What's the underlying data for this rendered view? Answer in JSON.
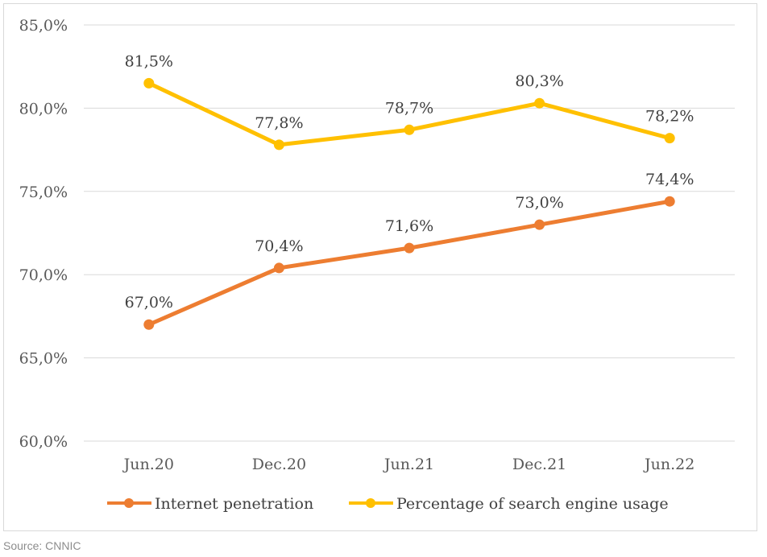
{
  "chart_data": {
    "type": "line",
    "categories": [
      "Jun.20",
      "Dec.20",
      "Jun.21",
      "Dec.21",
      "Jun.22"
    ],
    "series": [
      {
        "name": "Internet penetration",
        "values": [
          67.0,
          70.4,
          71.6,
          73.0,
          74.4
        ],
        "labels": [
          "67,0%",
          "70,4%",
          "71,6%",
          "73,0%",
          "74,4%"
        ],
        "color": "#ed7d31"
      },
      {
        "name": "Percentage of search engine usage",
        "values": [
          81.5,
          77.8,
          78.7,
          80.3,
          78.2
        ],
        "labels": [
          "81,5%",
          "77,8%",
          "78,7%",
          "80,3%",
          "78,2%"
        ],
        "color": "#ffc000"
      }
    ],
    "ylim": [
      60,
      85
    ],
    "yticks": [
      60,
      65,
      70,
      75,
      80,
      85
    ],
    "ytick_labels": [
      "60,0%",
      "65,0%",
      "70,0%",
      "75,0%",
      "80,0%",
      "85,0%"
    ],
    "grid": true,
    "legend": "bottom-center"
  },
  "source": "Source: CNNIC"
}
